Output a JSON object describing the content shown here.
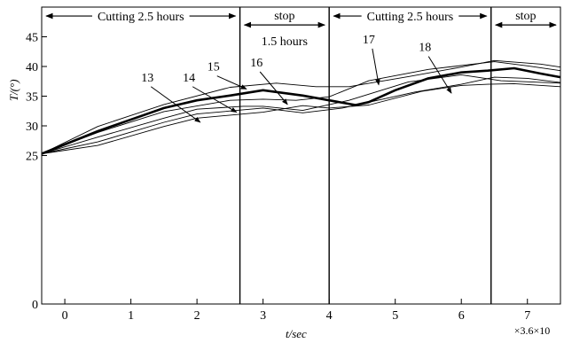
{
  "chart_data": {
    "type": "line",
    "xlabel": "t/sec",
    "x_multiplier_label": "×3.6×10",
    "ylabel": "T/(°)",
    "xlim": [
      -0.35,
      7.5
    ],
    "ylim": [
      0,
      50
    ],
    "x_ticks": [
      0,
      1,
      2,
      3,
      4,
      5,
      6,
      7
    ],
    "y_ticks": [
      0,
      25,
      30,
      35,
      40,
      45
    ],
    "grid": false,
    "legend": "none",
    "phase_boundaries": [
      2.65,
      4.0,
      6.45
    ],
    "phases": [
      {
        "label": "Cutting 2.5 hours",
        "x_start": -0.35,
        "x_end": 2.65,
        "y": 48.5
      },
      {
        "label": "stop",
        "sublabel": "1.5 hours",
        "x_start": 2.65,
        "x_end": 4.0,
        "y": 47.0
      },
      {
        "label": "Cutting 2.5 hours",
        "x_start": 4.0,
        "x_end": 6.45,
        "y": 48.5
      },
      {
        "label": "stop",
        "x_start": 6.45,
        "x_end": 7.5,
        "y": 47.0
      }
    ],
    "series": [
      {
        "x": [
          -0.35,
          0.5,
          1.5,
          2.5,
          3.2,
          3.8,
          4.3,
          5.2,
          6.0,
          6.5,
          7.2,
          7.5
        ],
        "y": [
          25.3,
          29.9,
          33.6,
          36.5,
          37.2,
          36.6,
          36.6,
          38.3,
          39.9,
          41.0,
          40.4,
          39.9
        ]
      },
      {
        "x": [
          -0.35,
          0.5,
          1.5,
          2.5,
          3.0,
          3.5,
          4.0,
          4.6,
          5.5,
          6.5,
          7.0,
          7.5
        ],
        "y": [
          25.3,
          28.9,
          32.4,
          34.3,
          34.5,
          34.3,
          34.9,
          37.6,
          39.5,
          40.8,
          40.1,
          39.3
        ]
      },
      {
        "x": [
          -0.35,
          0.5,
          1.5,
          2.0,
          2.7,
          3.0,
          3.6,
          4.3,
          5.2,
          6.0,
          6.6,
          7.5
        ],
        "y": [
          25.3,
          28.1,
          31.3,
          32.8,
          33.3,
          33.3,
          32.6,
          34.3,
          37.4,
          38.6,
          37.6,
          37.2
        ]
      },
      {
        "x": [
          -0.35,
          0.5,
          1.5,
          2.0,
          3.0,
          3.6,
          4.2,
          5.3,
          6.0,
          6.5,
          7.0,
          7.5
        ],
        "y": [
          25.3,
          27.3,
          30.6,
          32.0,
          33.0,
          32.2,
          33.0,
          35.7,
          37.0,
          38.2,
          38.0,
          37.3
        ]
      },
      {
        "x": [
          -0.35,
          0.5,
          1.5,
          2.0,
          3.0,
          3.6,
          4.0,
          4.6,
          5.4,
          6.0,
          6.4,
          6.8,
          7.5
        ],
        "y": [
          25.3,
          26.7,
          29.9,
          31.3,
          32.3,
          33.4,
          33.0,
          33.5,
          35.8,
          36.8,
          37.0,
          37.1,
          36.6
        ]
      },
      {
        "bold": true,
        "x": [
          -0.35,
          0.5,
          1.5,
          2.0,
          2.5,
          3.0,
          3.6,
          4.0,
          4.4,
          4.6,
          5.0,
          5.5,
          6.0,
          6.4,
          6.8,
          7.2,
          7.5
        ],
        "y": [
          25.3,
          29.1,
          33.0,
          34.3,
          35.1,
          36.0,
          35.1,
          34.3,
          33.5,
          34.0,
          36.0,
          38.0,
          39.0,
          39.3,
          39.7,
          38.8,
          38.2
        ]
      }
    ],
    "annotations": [
      {
        "label": "13",
        "text_x": 1.25,
        "text_y": 37.5,
        "arrow_x": 2.05,
        "arrow_y": 30.6
      },
      {
        "label": "14",
        "text_x": 1.88,
        "text_y": 37.5,
        "arrow_x": 2.6,
        "arrow_y": 32.3
      },
      {
        "label": "15",
        "text_x": 2.25,
        "text_y": 39.3,
        "arrow_x": 2.75,
        "arrow_y": 36.2
      },
      {
        "label": "16",
        "text_x": 2.9,
        "text_y": 40.0,
        "arrow_x": 3.37,
        "arrow_y": 33.6
      },
      {
        "label": "17",
        "text_x": 4.6,
        "text_y": 43.9,
        "arrow_x": 4.75,
        "arrow_y": 36.9
      },
      {
        "label": "18",
        "text_x": 5.45,
        "text_y": 42.6,
        "arrow_x": 5.85,
        "arrow_y": 35.5
      }
    ]
  }
}
